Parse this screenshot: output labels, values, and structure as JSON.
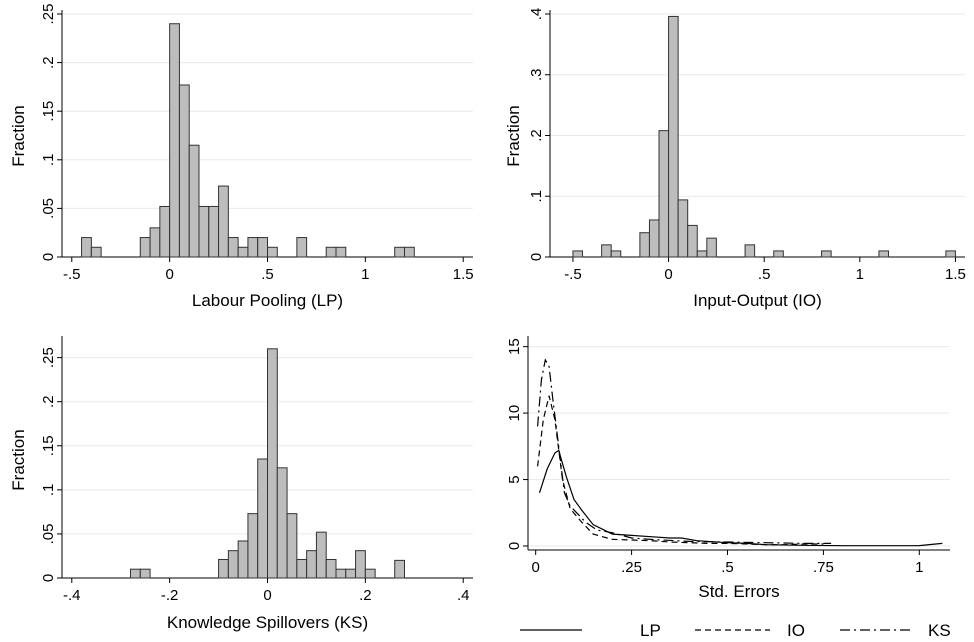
{
  "chart_data": [
    {
      "type": "bar",
      "subtype": "histogram",
      "xlabel": "Labour Pooling (LP)",
      "ylabel": "Fraction",
      "xlim": [
        -0.55,
        1.55
      ],
      "ylim": [
        0,
        0.25
      ],
      "xticks": [
        -0.5,
        0,
        0.5,
        1,
        1.5
      ],
      "xtick_labels": [
        "-.5",
        "0",
        ".5",
        "1",
        "1.5"
      ],
      "yticks": [
        0,
        0.05,
        0.1,
        0.15,
        0.2,
        0.25
      ],
      "ytick_labels": [
        "0",
        ".05",
        ".1",
        ".15",
        ".2",
        ".25"
      ],
      "bin_width": 0.05,
      "bins": [
        {
          "x": -0.45,
          "value": 0.02
        },
        {
          "x": -0.4,
          "value": 0.01
        },
        {
          "x": -0.15,
          "value": 0.02
        },
        {
          "x": -0.1,
          "value": 0.03
        },
        {
          "x": -0.05,
          "value": 0.052
        },
        {
          "x": 0.0,
          "value": 0.24
        },
        {
          "x": 0.05,
          "value": 0.177
        },
        {
          "x": 0.1,
          "value": 0.115
        },
        {
          "x": 0.15,
          "value": 0.052
        },
        {
          "x": 0.2,
          "value": 0.052
        },
        {
          "x": 0.25,
          "value": 0.073
        },
        {
          "x": 0.3,
          "value": 0.02
        },
        {
          "x": 0.35,
          "value": 0.01
        },
        {
          "x": 0.4,
          "value": 0.02
        },
        {
          "x": 0.45,
          "value": 0.02
        },
        {
          "x": 0.5,
          "value": 0.01
        },
        {
          "x": 0.65,
          "value": 0.02
        },
        {
          "x": 0.8,
          "value": 0.01
        },
        {
          "x": 0.85,
          "value": 0.01
        },
        {
          "x": 1.15,
          "value": 0.01
        },
        {
          "x": 1.2,
          "value": 0.01
        }
      ],
      "grid": true
    },
    {
      "type": "bar",
      "subtype": "histogram",
      "xlabel": "Input-Output (IO)",
      "ylabel": "Fraction",
      "xlim": [
        -0.62,
        1.55
      ],
      "ylim": [
        0,
        0.4
      ],
      "xticks": [
        -0.5,
        0,
        0.5,
        1,
        1.5
      ],
      "xtick_labels": [
        "-.5",
        "0",
        ".5",
        "1",
        "1.5"
      ],
      "yticks": [
        0,
        0.1,
        0.2,
        0.3,
        0.4
      ],
      "ytick_labels": [
        "0",
        ".1",
        ".2",
        ".3",
        ".4"
      ],
      "bin_width": 0.05,
      "bins": [
        {
          "x": -0.5,
          "value": 0.01
        },
        {
          "x": -0.35,
          "value": 0.02
        },
        {
          "x": -0.3,
          "value": 0.01
        },
        {
          "x": -0.15,
          "value": 0.04
        },
        {
          "x": -0.1,
          "value": 0.061
        },
        {
          "x": -0.05,
          "value": 0.208
        },
        {
          "x": 0.0,
          "value": 0.396
        },
        {
          "x": 0.05,
          "value": 0.094
        },
        {
          "x": 0.1,
          "value": 0.052
        },
        {
          "x": 0.15,
          "value": 0.01
        },
        {
          "x": 0.2,
          "value": 0.031
        },
        {
          "x": 0.4,
          "value": 0.02
        },
        {
          "x": 0.55,
          "value": 0.01
        },
        {
          "x": 0.8,
          "value": 0.01
        },
        {
          "x": 1.1,
          "value": 0.01
        },
        {
          "x": 1.45,
          "value": 0.01
        }
      ],
      "grid": true
    },
    {
      "type": "bar",
      "subtype": "histogram",
      "xlabel": "Knowledge Spillovers (KS)",
      "ylabel": "Fraction",
      "xlim": [
        -0.42,
        0.42
      ],
      "ylim": [
        0,
        0.27
      ],
      "xticks": [
        -0.4,
        -0.2,
        0,
        0.2,
        0.4
      ],
      "xtick_labels": [
        "-.4",
        "-.2",
        "0",
        ".2",
        ".4"
      ],
      "yticks": [
        0,
        0.05,
        0.1,
        0.15,
        0.2,
        0.25
      ],
      "ytick_labels": [
        "0",
        ".05",
        ".1",
        ".15",
        ".2",
        ".25"
      ],
      "bin_width": 0.02,
      "bins": [
        {
          "x": -0.28,
          "value": 0.01
        },
        {
          "x": -0.26,
          "value": 0.01
        },
        {
          "x": -0.1,
          "value": 0.021
        },
        {
          "x": -0.08,
          "value": 0.031
        },
        {
          "x": -0.06,
          "value": 0.042
        },
        {
          "x": -0.04,
          "value": 0.073
        },
        {
          "x": -0.02,
          "value": 0.135
        },
        {
          "x": 0.0,
          "value": 0.26
        },
        {
          "x": 0.02,
          "value": 0.125
        },
        {
          "x": 0.04,
          "value": 0.073
        },
        {
          "x": 0.06,
          "value": 0.021
        },
        {
          "x": 0.08,
          "value": 0.031
        },
        {
          "x": 0.1,
          "value": 0.052
        },
        {
          "x": 0.12,
          "value": 0.021
        },
        {
          "x": 0.14,
          "value": 0.01
        },
        {
          "x": 0.16,
          "value": 0.01
        },
        {
          "x": 0.18,
          "value": 0.031
        },
        {
          "x": 0.2,
          "value": 0.01
        },
        {
          "x": 0.26,
          "value": 0.02
        }
      ],
      "grid": true
    },
    {
      "type": "line",
      "subtype": "kernel density",
      "xlabel": "Std. Errors",
      "ylabel": "",
      "xlim": [
        -0.02,
        1.08
      ],
      "ylim": [
        -0.3,
        15.5
      ],
      "xticks": [
        0,
        0.25,
        0.5,
        0.75,
        1
      ],
      "xtick_labels": [
        "0",
        ".25",
        ".5",
        ".75",
        "1"
      ],
      "yticks": [
        0,
        5,
        10,
        15
      ],
      "ytick_labels": [
        "0",
        "5",
        "10",
        "15"
      ],
      "legend": "bottom",
      "legend_entries": [
        "LP",
        "IO",
        "KS"
      ],
      "grid": true,
      "series": [
        {
          "name": "LP",
          "dash": "solid",
          "x": [
            0.01,
            0.03,
            0.05,
            0.06,
            0.08,
            0.1,
            0.12,
            0.15,
            0.2,
            0.25,
            0.3,
            0.35,
            0.38,
            0.42,
            0.5,
            0.55,
            0.6,
            0.7,
            0.8,
            0.9,
            1.0,
            1.06
          ],
          "y": [
            4.0,
            5.8,
            7.0,
            7.2,
            5.2,
            3.5,
            2.7,
            1.6,
            0.9,
            0.8,
            0.7,
            0.6,
            0.6,
            0.4,
            0.25,
            0.2,
            0.1,
            0.05,
            0.02,
            0.02,
            0.03,
            0.2
          ]
        },
        {
          "name": "IO",
          "dash": "dashed",
          "x": [
            0.005,
            0.02,
            0.035,
            0.05,
            0.07,
            0.09,
            0.12,
            0.15,
            0.2,
            0.25,
            0.3,
            0.35,
            0.4,
            0.45,
            0.5,
            0.55,
            0.6,
            0.65,
            0.7,
            0.75
          ],
          "y": [
            6.0,
            9.5,
            11.3,
            9.5,
            5.0,
            2.8,
            1.8,
            0.9,
            0.5,
            0.45,
            0.4,
            0.3,
            0.25,
            0.2,
            0.2,
            0.15,
            0.1,
            0.1,
            0.15,
            0.15
          ]
        },
        {
          "name": "KS",
          "dash": "dashdot",
          "x": [
            0.005,
            0.015,
            0.025,
            0.035,
            0.045,
            0.06,
            0.075,
            0.09,
            0.11,
            0.13,
            0.16,
            0.2,
            0.25,
            0.3,
            0.4,
            0.5,
            0.6,
            0.7,
            0.77
          ],
          "y": [
            9.0,
            12.5,
            14.0,
            13.5,
            11.0,
            7.5,
            4.0,
            3.0,
            2.4,
            1.8,
            1.2,
            1.0,
            0.6,
            0.5,
            0.35,
            0.3,
            0.25,
            0.2,
            0.2
          ]
        }
      ]
    }
  ]
}
